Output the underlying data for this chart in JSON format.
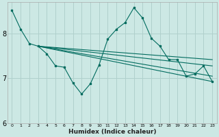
{
  "xlabel": "Humidex (Indice chaleur)",
  "bg_color": "#cce8e4",
  "grid_color": "#b0d0cc",
  "line_color": "#006b5e",
  "xlim": [
    -0.5,
    23.5
  ],
  "ylim": [
    6.0,
    8.7
  ],
  "yticks": [
    6,
    7,
    8
  ],
  "xticks": [
    0,
    1,
    2,
    3,
    4,
    5,
    6,
    7,
    8,
    9,
    10,
    11,
    12,
    13,
    14,
    15,
    16,
    17,
    18,
    19,
    20,
    21,
    22,
    23
  ],
  "main_x": [
    0,
    1,
    2,
    3,
    4,
    5,
    6,
    7,
    8,
    9,
    10,
    11,
    12,
    13,
    14,
    15,
    16,
    17,
    18,
    19,
    20,
    21,
    22,
    23
  ],
  "main_y": [
    8.52,
    8.1,
    7.78,
    7.72,
    7.55,
    7.28,
    7.25,
    6.9,
    6.65,
    6.88,
    7.3,
    7.88,
    8.1,
    8.25,
    8.58,
    8.35,
    7.9,
    7.72,
    7.42,
    7.42,
    7.05,
    7.1,
    7.28,
    6.93
  ],
  "reg_lines": [
    {
      "x0": 3,
      "y0": 7.72,
      "x1": 23,
      "y1": 7.42
    },
    {
      "x0": 3,
      "y0": 7.72,
      "x1": 23,
      "y1": 7.28
    },
    {
      "x0": 3,
      "y0": 7.72,
      "x1": 23,
      "y1": 7.05
    },
    {
      "x0": 3,
      "y0": 7.72,
      "x1": 23,
      "y1": 6.93
    }
  ]
}
